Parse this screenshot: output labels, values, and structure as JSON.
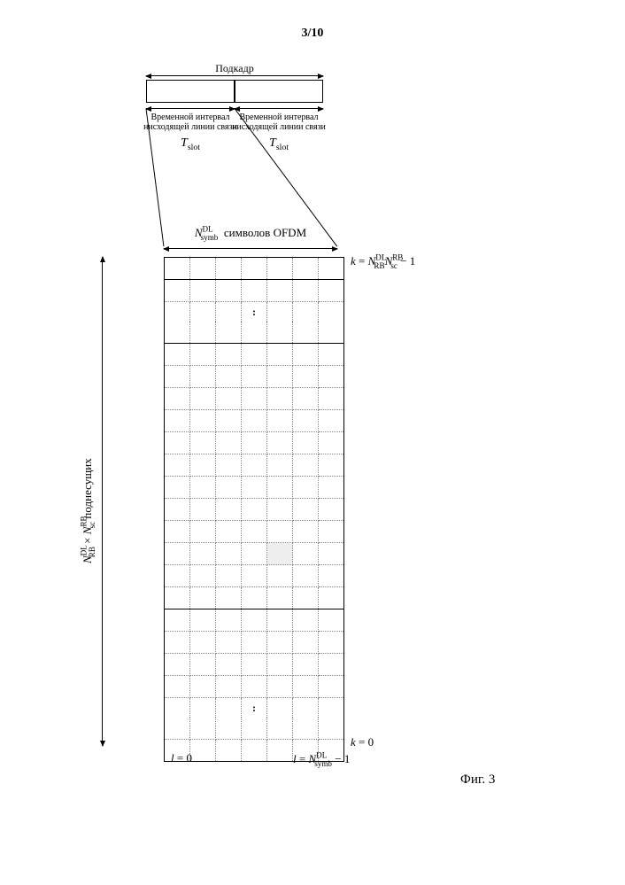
{
  "page_number_top": "3/10",
  "figure_label": "Фиг. 3",
  "subframe": {
    "label": "Подкадр",
    "slot_label_left": "Временной интервал нисходящей линии связи",
    "slot_label_right": "Временной интервал нисходящей линии связи",
    "t_slot": "T",
    "t_slot_sub": "slot"
  },
  "symbols_label_frag1": "N",
  "symbols_label_sup": "DL",
  "symbols_label_sub": "symb",
  "symbols_label_frag2": "символов OFDM",
  "y_axis": {
    "frag1": "N",
    "sup1": "DL",
    "sub1": "RB",
    "times": " × ",
    "frag2": "N",
    "sup2": "RB",
    "sub2": "sc",
    "tail": "  поднесущих"
  },
  "k_top": {
    "pre": "k = ",
    "f1": "N",
    "sup1": "DL",
    "sub1": "RB",
    "f2": "N",
    "sup2": "RB",
    "sub2": "sc",
    "tail": " − 1"
  },
  "k_bottom": "k = 0",
  "l_left": "l = 0",
  "l_right": {
    "pre": "l = ",
    "f": "N",
    "sup": "DL",
    "sub": "symb",
    "tail": " − 1"
  },
  "grid": {
    "cols": 7,
    "row_blocks": [
      {
        "type": "solid_top",
        "rows": 1
      },
      {
        "type": "dotted",
        "rows": 1
      },
      {
        "type": "colon",
        "rows": 1
      },
      {
        "type": "solid_bottom_only",
        "rows": 1
      },
      {
        "type": "dotted",
        "rows": 11,
        "shaded": [
          {
            "row": 9,
            "col": 4
          }
        ]
      },
      {
        "type": "solid_bottom_only",
        "rows": 1
      },
      {
        "type": "dotted",
        "rows": 4
      },
      {
        "type": "colon",
        "rows": 1
      },
      {
        "type": "dotted",
        "rows": 1
      },
      {
        "type": "solid_bottom",
        "rows": 1
      }
    ]
  }
}
